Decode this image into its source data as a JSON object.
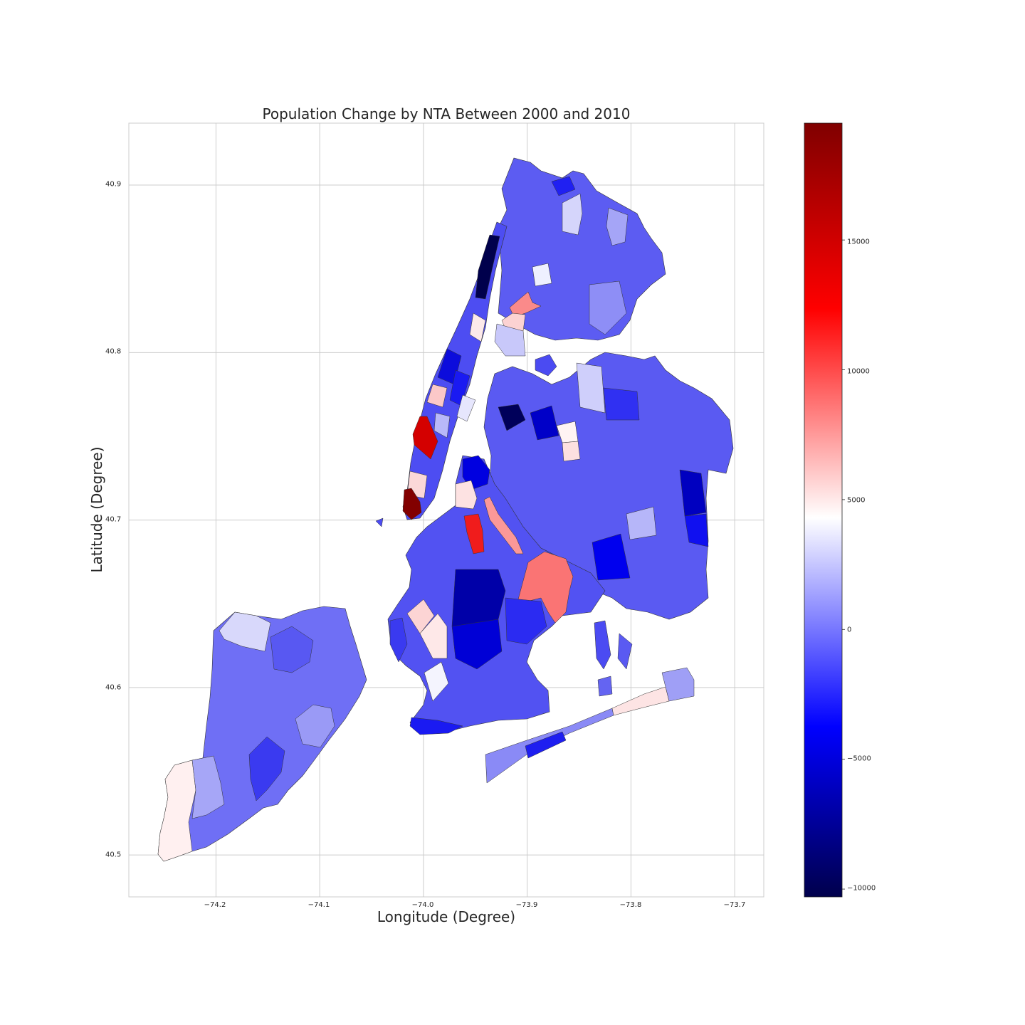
{
  "map": {
    "title": "Population Change by NTA Between 2000 and 2010",
    "xlabel": "Longitude (Degree)",
    "ylabel": "Latitude (Degree)",
    "x_ticks": [
      "−74.2",
      "−74.1",
      "−74.0",
      "−73.9",
      "−73.8",
      "−73.7"
    ],
    "x_tick_values": [
      -74.2,
      -74.1,
      -74.0,
      -73.9,
      -73.8,
      -73.7
    ],
    "y_ticks": [
      "40.9",
      "40.8",
      "40.7",
      "40.6",
      "40.5"
    ],
    "y_tick_values": [
      40.9,
      40.8,
      40.7,
      40.6,
      40.5
    ],
    "xlim": [
      -74.284,
      -73.672
    ],
    "ylim": [
      40.475,
      40.937
    ],
    "grid": true,
    "region": "New York City Neighborhood Tabulation Areas",
    "colormap": "seismic",
    "colorbar": {
      "range": [
        -10300,
        19500
      ],
      "ticks": [
        "−10000",
        "−5000",
        "0",
        "5000",
        "10000",
        "15000"
      ],
      "tick_values": [
        -10000,
        -5000,
        0,
        5000,
        10000,
        15000
      ],
      "colors": [
        "#00004c",
        "#0000ff",
        "#ffffff",
        "#ff0000",
        "#800000"
      ]
    },
    "colors": {
      "water": "#ffffff",
      "grid": "#cccccc",
      "border": "#000000",
      "strong_decline": "#00004c",
      "decline": "#0000ff",
      "no_change": "#ffffff",
      "growth": "#ff0000",
      "strong_growth": "#800000"
    }
  }
}
